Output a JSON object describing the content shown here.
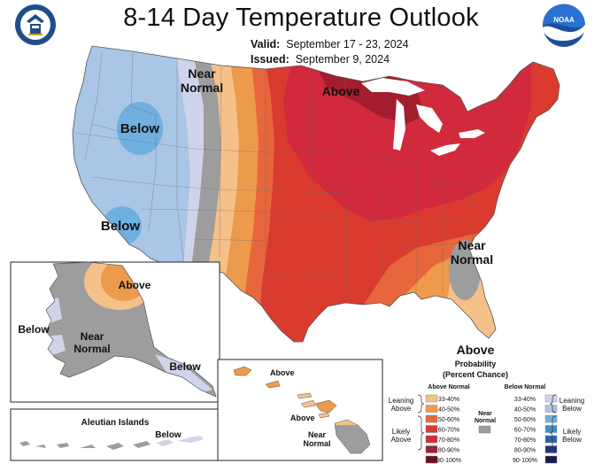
{
  "title": "8-14 Day Temperature Outlook",
  "valid": {
    "label": "Valid:",
    "value": "September 17 - 23, 2024"
  },
  "issued": {
    "label": "Issued:",
    "value": "September 9, 2024"
  },
  "logos": {
    "left": "commerce-seal-icon",
    "right": "noaa-icon",
    "right_text": "NOAA"
  },
  "region_labels": {
    "near_normal_west_1": "Near",
    "near_normal_west_2": "Normal",
    "above_great_lakes": "Above",
    "below_northwest": "Below",
    "below_southwest": "Below",
    "near_normal_southeast_1": "Near",
    "near_normal_southeast_2": "Normal",
    "above_alaska": "Above",
    "below_alaska_west": "Below",
    "near_normal_alaska_1": "Near",
    "near_normal_alaska_2": "Normal",
    "below_alaska_panhandle": "Below",
    "aleutian_title": "Aleutian Islands",
    "below_aleutian": "Below",
    "above_hawaii_1": "Above",
    "above_hawaii_2": "Above",
    "near_normal_hawaii_1": "Near",
    "near_normal_hawaii_2": "Normal"
  },
  "legend": {
    "title_1": "Above",
    "title_2": "Probability",
    "title_3": "(Percent Chance)",
    "above_header": "Above Normal",
    "below_header": "Below Normal",
    "near_normal_1": "Near",
    "near_normal_2": "Normal",
    "leaning_above_1": "Leaning",
    "leaning_above_2": "Above",
    "likely_above_1": "Likely",
    "likely_above_2": "Above",
    "leaning_below_1": "Leaning",
    "leaning_below_2": "Below",
    "likely_below_1": "Likely",
    "likely_below_2": "Below",
    "above_bins": [
      {
        "label": "33-40%",
        "color": "#f5c18a"
      },
      {
        "label": "40-50%",
        "color": "#ee9a4d"
      },
      {
        "label": "50-60%",
        "color": "#e8663b"
      },
      {
        "label": "60-70%",
        "color": "#db3a2f"
      },
      {
        "label": "70-80%",
        "color": "#d12a3c"
      },
      {
        "label": "80-90%",
        "color": "#a31d2e"
      },
      {
        "label": "90-100%",
        "color": "#6b1420"
      }
    ],
    "below_bins": [
      {
        "label": "33-40%",
        "color": "#cfd4ea"
      },
      {
        "label": "40-50%",
        "color": "#a9c6e6"
      },
      {
        "label": "50-60%",
        "color": "#6fb0e0"
      },
      {
        "label": "60-70%",
        "color": "#3d8fd1"
      },
      {
        "label": "70-80%",
        "color": "#2b66ad"
      },
      {
        "label": "80-90%",
        "color": "#23357d"
      },
      {
        "label": "90-100%",
        "color": "#1b1a55"
      }
    ],
    "near_normal_color": "#9d9d9d"
  }
}
